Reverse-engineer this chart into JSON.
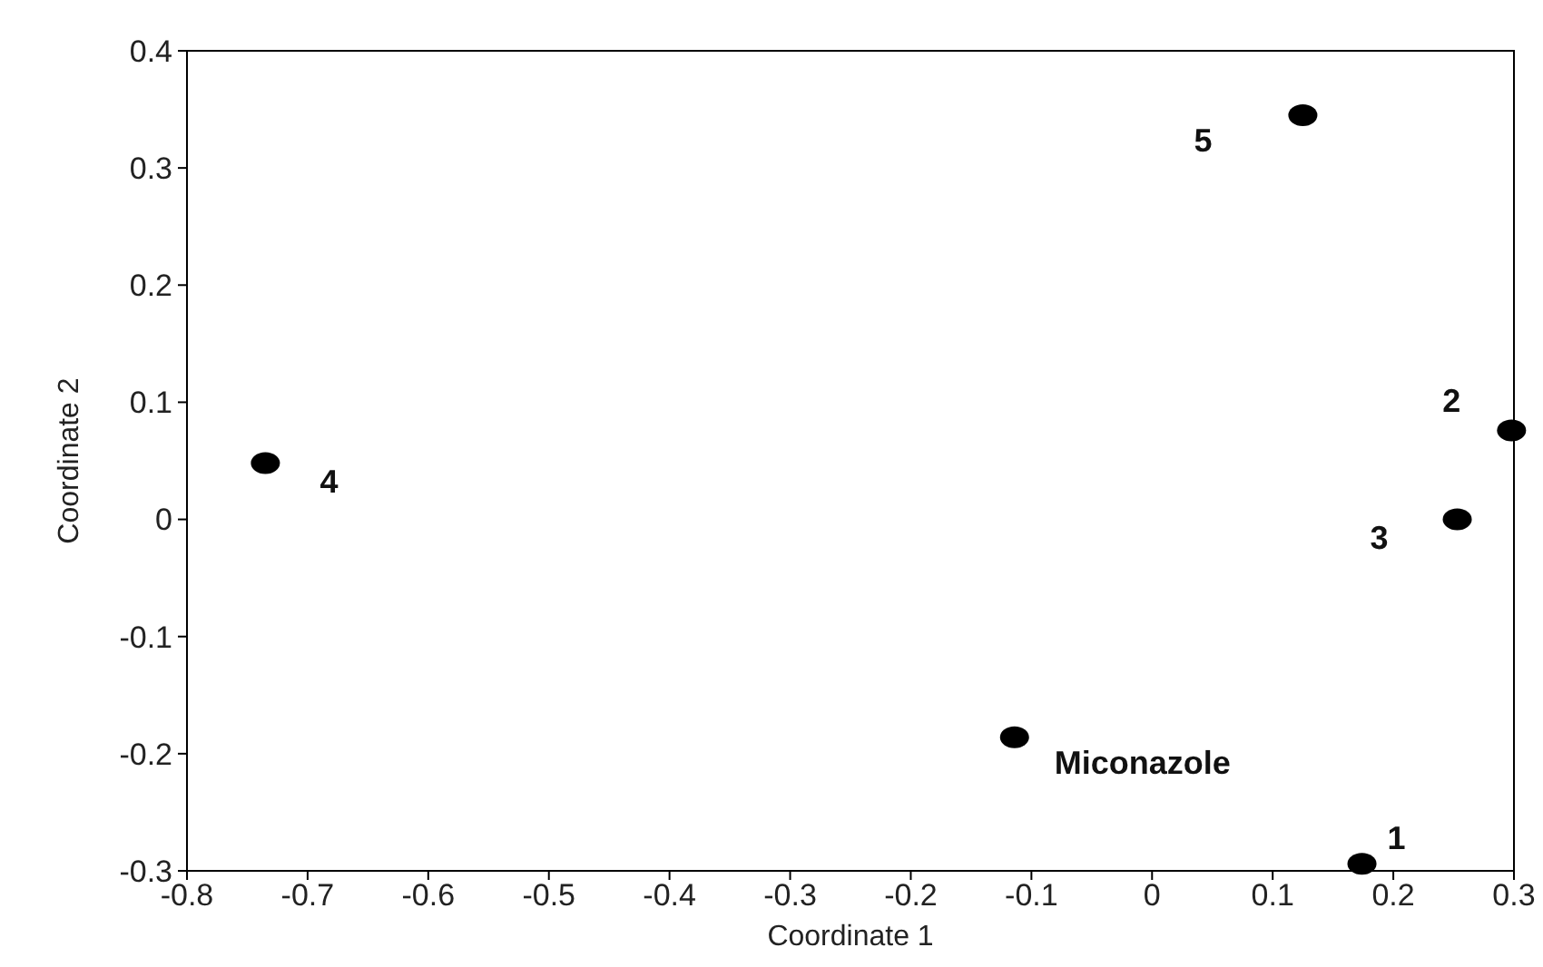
{
  "chart_data": {
    "type": "scatter",
    "xlabel": "Coordinate 1",
    "ylabel": "Coordinate 2",
    "x": [
      0.174,
      0.298,
      0.253,
      -0.735,
      0.125,
      -0.114
    ],
    "values": [
      -0.294,
      0.076,
      0,
      0.048,
      0.345,
      -0.186
    ],
    "color": "#000000",
    "marker": "circle",
    "xlim": [
      -0.8,
      0.3
    ],
    "xticks": [
      -0.8,
      -0.7,
      -0.6,
      -0.5,
      -0.4,
      -0.3,
      -0.2,
      -0.1,
      0,
      0.1,
      0.2,
      0.3
    ],
    "ylim": [
      -0.3,
      0.4
    ],
    "yticks": [
      -0.3,
      -0.2,
      -0.1,
      0,
      0.1,
      0.2,
      0.3,
      0.4
    ],
    "annotations": [
      {
        "text": "1",
        "x": 0.174,
        "y": -0.294
      },
      {
        "text": "2",
        "x": 0.298,
        "y": 0.076
      },
      {
        "text": "3",
        "x": 0.253,
        "y": 0
      },
      {
        "text": "4",
        "x": -0.735,
        "y": 0.048
      },
      {
        "text": "5",
        "x": 0.125,
        "y": 0.345
      },
      {
        "text": "Miconazole",
        "x": -0.114,
        "y": -0.186
      }
    ]
  }
}
